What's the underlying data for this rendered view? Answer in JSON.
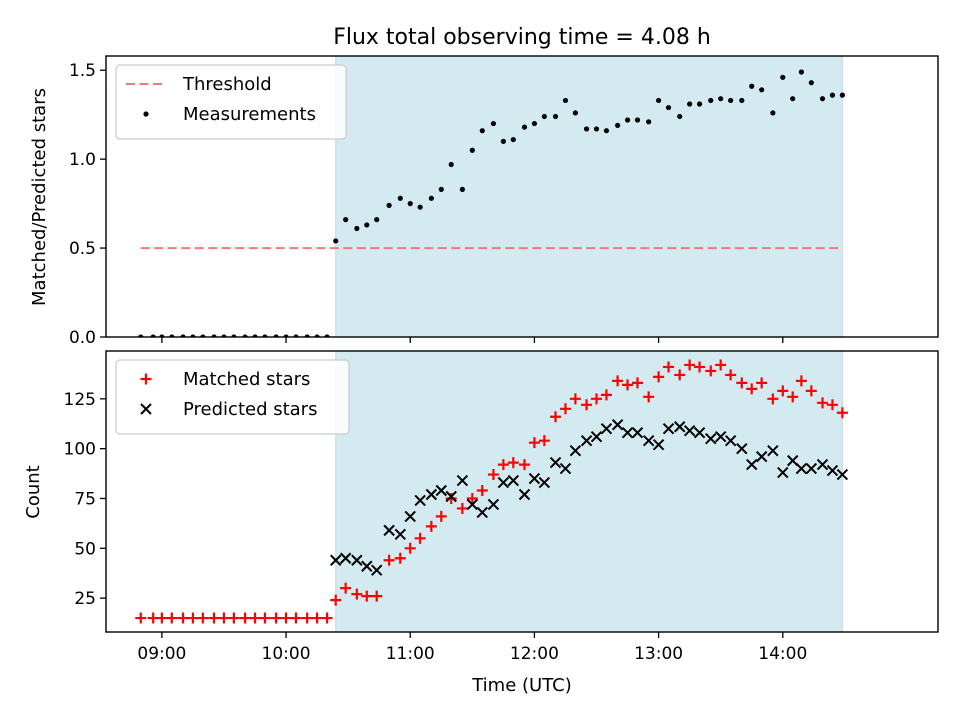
{
  "chart_data": [
    {
      "type": "scatter",
      "title": "Flux total observing time = 4.08 h",
      "xlabel": "",
      "ylabel": "Matched/Predicted stars",
      "xlim": [
        8.55,
        15.25
      ],
      "ylim": [
        0,
        1.58
      ],
      "yticks": [
        0,
        0.5,
        1.0,
        1.5
      ],
      "ytick_labels": [
        "0.0",
        "0.5",
        "1.0",
        "1.5"
      ],
      "shaded_region": {
        "x_start": 10.4,
        "x_end": 14.48,
        "color": "#d3eaf0"
      },
      "threshold": {
        "name": "Threshold",
        "value": 0.5,
        "x_range": [
          8.83,
          14.48
        ],
        "color": "#f07a7a"
      },
      "legend_position": "upper left",
      "series": [
        {
          "name": "Measurements",
          "marker": "dot",
          "color": "#000000",
          "x": [
            8.83,
            8.93,
            9.0,
            9.08,
            9.17,
            9.25,
            9.33,
            9.42,
            9.5,
            9.58,
            9.67,
            9.75,
            9.83,
            9.92,
            10.0,
            10.08,
            10.17,
            10.25,
            10.33,
            10.4,
            10.48,
            10.57,
            10.65,
            10.73,
            10.83,
            10.92,
            11.0,
            11.08,
            11.17,
            11.25,
            11.33,
            11.42,
            11.5,
            11.58,
            11.67,
            11.75,
            11.83,
            11.92,
            12.0,
            12.08,
            12.17,
            12.25,
            12.33,
            12.42,
            12.5,
            12.58,
            12.67,
            12.75,
            12.83,
            12.92,
            13.0,
            13.08,
            13.17,
            13.25,
            13.33,
            13.42,
            13.5,
            13.58,
            13.67,
            13.75,
            13.83,
            13.92,
            14.0,
            14.08,
            14.15,
            14.23,
            14.32,
            14.4,
            14.48
          ],
          "y": [
            0,
            0,
            0,
            0,
            0,
            0,
            0,
            0,
            0,
            0,
            0,
            0,
            0,
            0,
            0,
            0,
            0,
            0,
            0,
            0.54,
            0.66,
            0.61,
            0.63,
            0.66,
            0.74,
            0.78,
            0.75,
            0.73,
            0.78,
            0.83,
            0.97,
            0.83,
            1.05,
            1.16,
            1.2,
            1.1,
            1.11,
            1.18,
            1.2,
            1.24,
            1.24,
            1.33,
            1.26,
            1.17,
            1.17,
            1.16,
            1.19,
            1.22,
            1.22,
            1.21,
            1.33,
            1.29,
            1.24,
            1.31,
            1.31,
            1.33,
            1.34,
            1.33,
            1.33,
            1.41,
            1.39,
            1.26,
            1.46,
            1.34,
            1.49,
            1.43,
            1.34,
            1.36,
            1.36
          ]
        }
      ]
    },
    {
      "type": "scatter",
      "title": "",
      "xlabel": "Time (UTC)",
      "ylabel": "Count",
      "xlim": [
        8.55,
        15.25
      ],
      "ylim": [
        8,
        149
      ],
      "yticks": [
        25,
        50,
        75,
        100,
        125
      ],
      "ytick_labels": [
        "25",
        "50",
        "75",
        "100",
        "125"
      ],
      "xticks": [
        9,
        10,
        11,
        12,
        13,
        14
      ],
      "xtick_labels": [
        "09:00",
        "10:00",
        "11:00",
        "12:00",
        "13:00",
        "14:00"
      ],
      "shaded_region": {
        "x_start": 10.4,
        "x_end": 14.48,
        "color": "#d3eaf0"
      },
      "legend_position": "upper left",
      "series": [
        {
          "name": "Matched stars",
          "marker": "plus",
          "color": "#ff0000",
          "x": [
            8.83,
            8.93,
            9.0,
            9.08,
            9.17,
            9.25,
            9.33,
            9.42,
            9.5,
            9.58,
            9.67,
            9.75,
            9.83,
            9.92,
            10.0,
            10.08,
            10.17,
            10.25,
            10.33,
            10.4,
            10.48,
            10.57,
            10.65,
            10.73,
            10.83,
            10.92,
            11.0,
            11.08,
            11.17,
            11.25,
            11.33,
            11.42,
            11.5,
            11.58,
            11.67,
            11.75,
            11.83,
            11.92,
            12.0,
            12.08,
            12.17,
            12.25,
            12.33,
            12.42,
            12.5,
            12.58,
            12.67,
            12.75,
            12.83,
            12.92,
            13.0,
            13.08,
            13.17,
            13.25,
            13.33,
            13.42,
            13.5,
            13.58,
            13.67,
            13.75,
            13.83,
            13.92,
            14.0,
            14.08,
            14.15,
            14.23,
            14.32,
            14.4,
            14.48
          ],
          "y": [
            15,
            15,
            15,
            15,
            15,
            15,
            15,
            15,
            15,
            15,
            15,
            15,
            15,
            15,
            15,
            15,
            15,
            15,
            15,
            24,
            30,
            27,
            26,
            26,
            44,
            45,
            50,
            55,
            61,
            66,
            75,
            70,
            75,
            79,
            87,
            92,
            93,
            92,
            103,
            104,
            116,
            120,
            125,
            122,
            125,
            127,
            134,
            132,
            133,
            126,
            136,
            141,
            137,
            142,
            141,
            139,
            142,
            137,
            133,
            130,
            133,
            125,
            129,
            126,
            134,
            129,
            123,
            122,
            118
          ]
        },
        {
          "name": "Predicted stars",
          "marker": "x",
          "color": "#000000",
          "x": [
            10.4,
            10.48,
            10.57,
            10.65,
            10.73,
            10.83,
            10.92,
            11.0,
            11.08,
            11.17,
            11.25,
            11.33,
            11.42,
            11.5,
            11.58,
            11.67,
            11.75,
            11.83,
            11.92,
            12.0,
            12.08,
            12.17,
            12.25,
            12.33,
            12.42,
            12.5,
            12.58,
            12.67,
            12.75,
            12.83,
            12.92,
            13.0,
            13.08,
            13.17,
            13.25,
            13.33,
            13.42,
            13.5,
            13.58,
            13.67,
            13.75,
            13.83,
            13.92,
            14.0,
            14.08,
            14.15,
            14.23,
            14.32,
            14.4,
            14.48
          ],
          "y": [
            44,
            45,
            44,
            41,
            39,
            59,
            57,
            66,
            74,
            77,
            79,
            76,
            84,
            72,
            68,
            72,
            83,
            84,
            77,
            85,
            83,
            93,
            90,
            99,
            104,
            106,
            110,
            112,
            108,
            108,
            104,
            102,
            110,
            111,
            109,
            108,
            105,
            106,
            104,
            100,
            92,
            96,
            99,
            88,
            94,
            90,
            90,
            92,
            89,
            87
          ]
        }
      ]
    }
  ]
}
